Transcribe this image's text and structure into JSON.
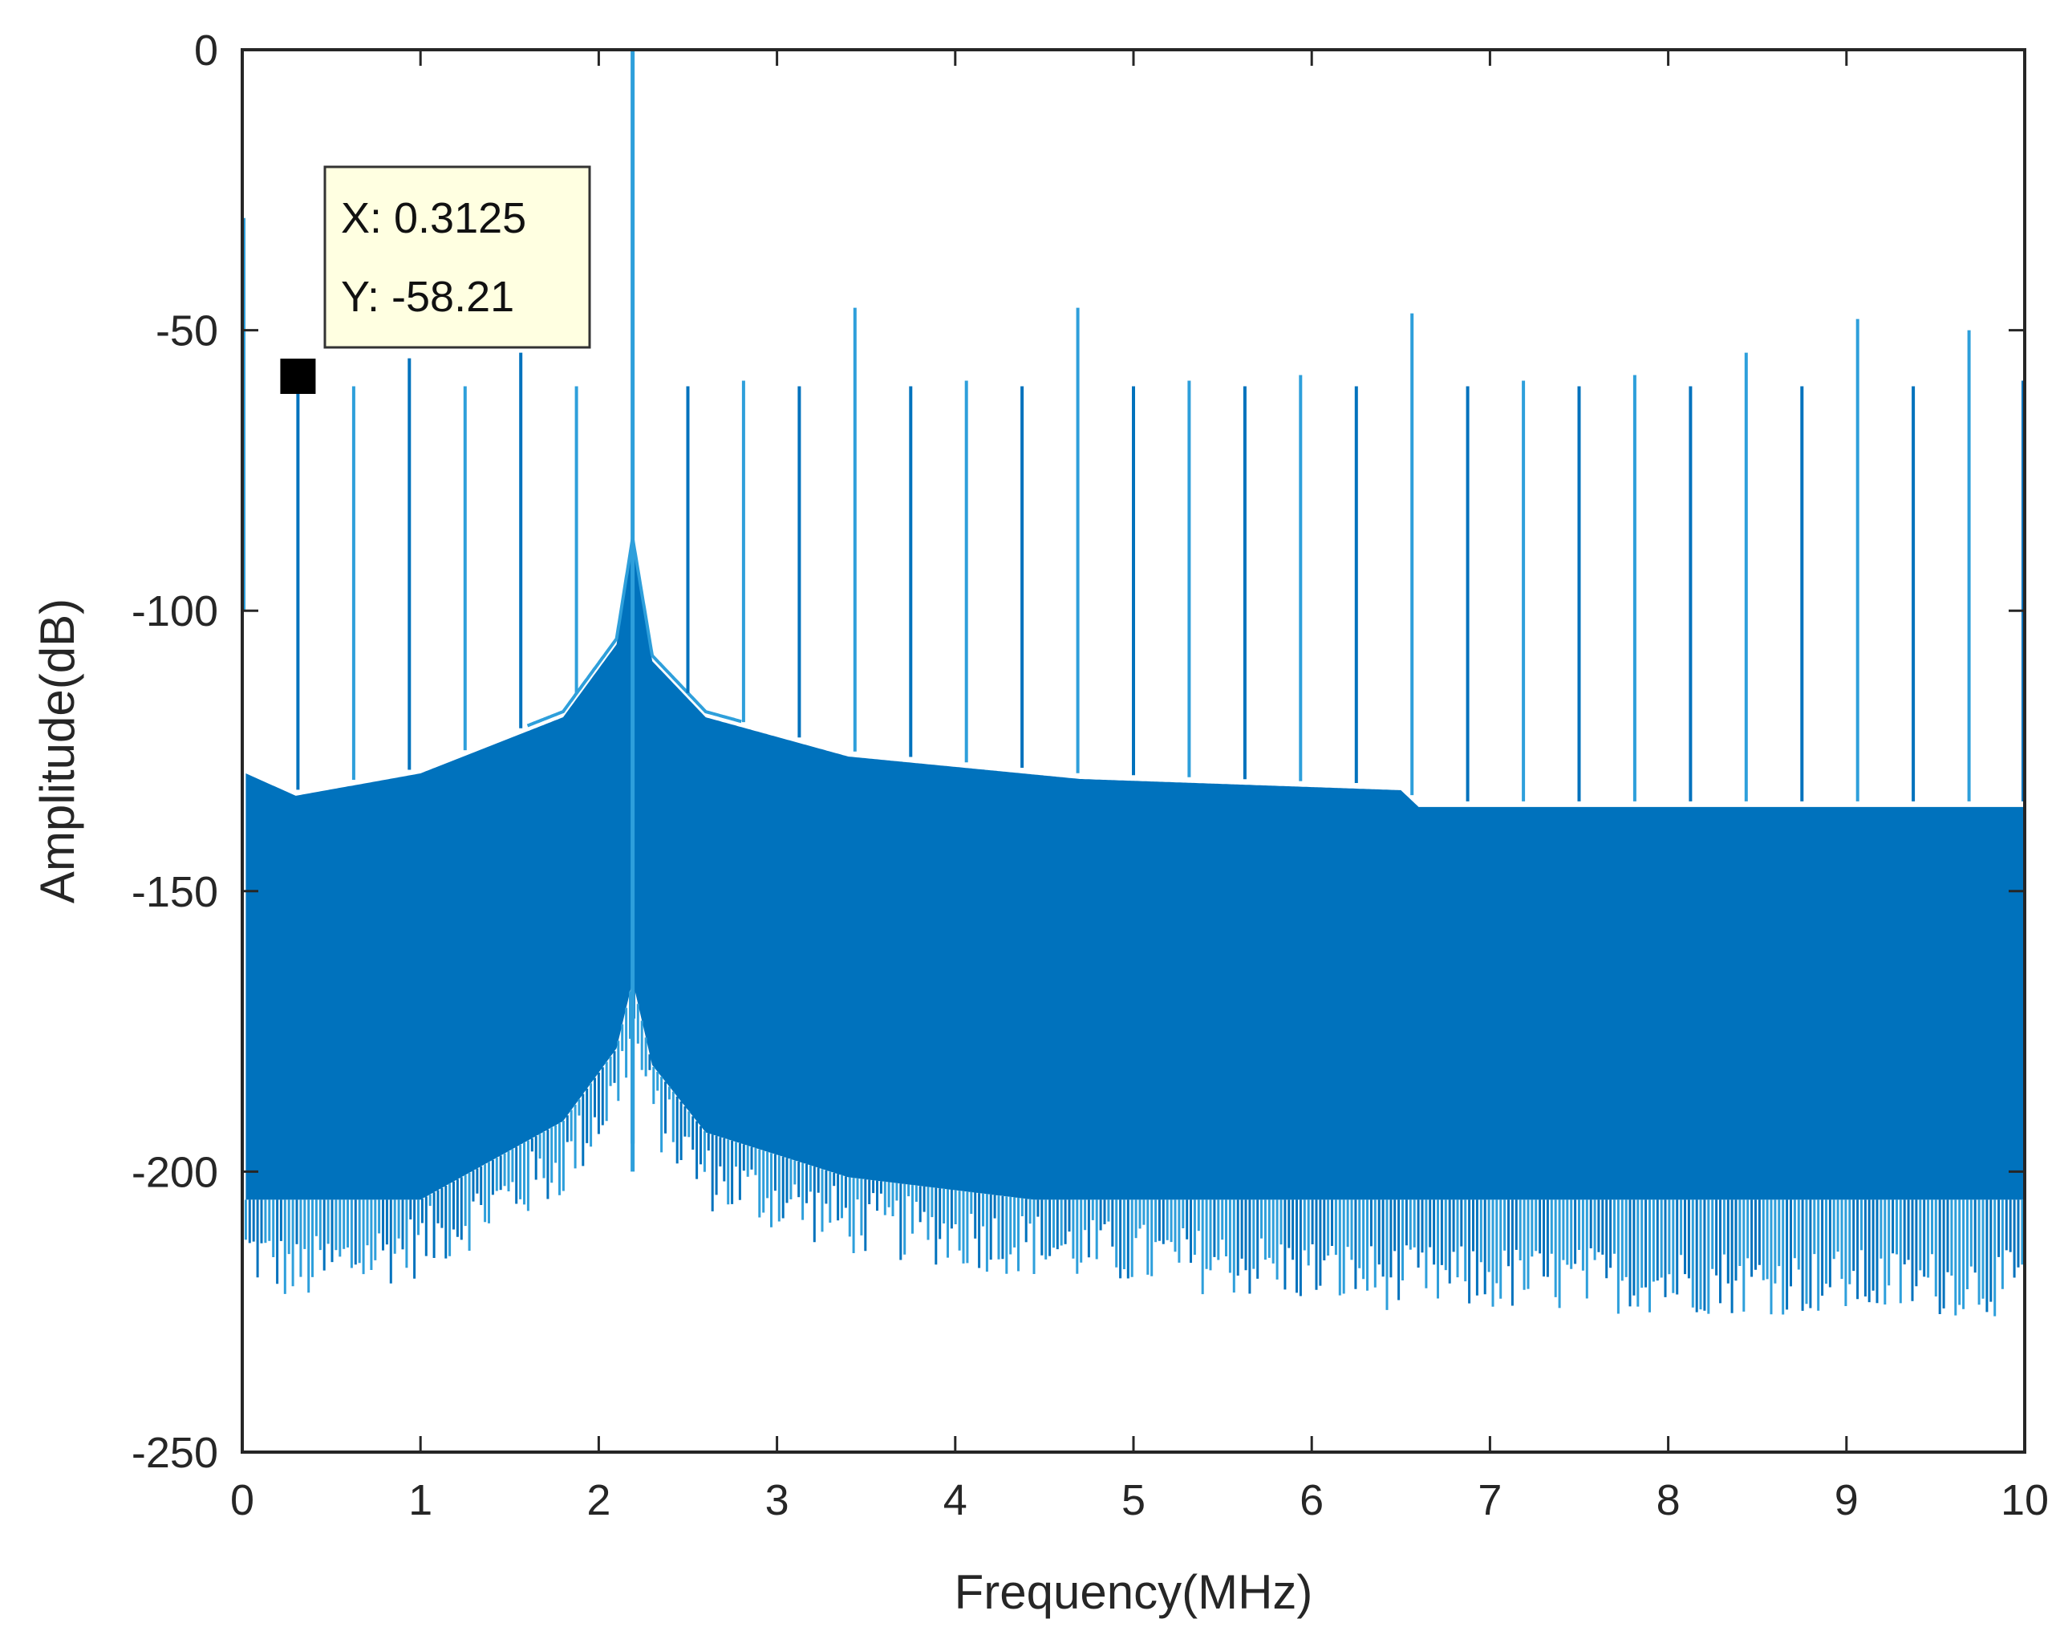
{
  "chart_data": {
    "type": "line",
    "title": "",
    "xlabel": "Frequency(MHz)",
    "ylabel": "Amplitude(dB)",
    "xlim": [
      0,
      10
    ],
    "ylim": [
      -250,
      0
    ],
    "xticks": [
      0,
      1,
      2,
      3,
      4,
      5,
      6,
      7,
      8,
      9,
      10
    ],
    "yticks": [
      0,
      -50,
      -100,
      -150,
      -200,
      -250
    ],
    "xtick_labels": [
      "0",
      "1",
      "2",
      "3",
      "4",
      "5",
      "6",
      "7",
      "8",
      "9",
      "10"
    ],
    "ytick_labels": [
      "0",
      "-50",
      "-100",
      "-150",
      "-200",
      "-250"
    ],
    "grid": false,
    "line_color": "#0072BD",
    "line_color_light": "#2E9FDB",
    "fundamental": {
      "x": 2.19,
      "y": 0
    },
    "secondary_peak": {
      "x": 2.19,
      "y": -170
    },
    "spurs": [
      {
        "x": 0.0,
        "y": -30
      },
      {
        "x": 0.3125,
        "y": -58.21
      },
      {
        "x": 0.625,
        "y": -60
      },
      {
        "x": 0.9375,
        "y": -55
      },
      {
        "x": 1.25,
        "y": -60
      },
      {
        "x": 1.5625,
        "y": -54
      },
      {
        "x": 1.875,
        "y": -60
      },
      {
        "x": 2.5,
        "y": -60
      },
      {
        "x": 2.8125,
        "y": -59
      },
      {
        "x": 3.125,
        "y": -60
      },
      {
        "x": 3.4375,
        "y": -46
      },
      {
        "x": 3.75,
        "y": -60
      },
      {
        "x": 4.0625,
        "y": -59
      },
      {
        "x": 4.375,
        "y": -60
      },
      {
        "x": 4.6875,
        "y": -46
      },
      {
        "x": 5.0,
        "y": -60
      },
      {
        "x": 5.3125,
        "y": -59
      },
      {
        "x": 5.625,
        "y": -60
      },
      {
        "x": 5.9375,
        "y": -58
      },
      {
        "x": 6.25,
        "y": -60
      },
      {
        "x": 6.5625,
        "y": -47
      },
      {
        "x": 6.875,
        "y": -60
      },
      {
        "x": 7.1875,
        "y": -59
      },
      {
        "x": 7.5,
        "y": -60
      },
      {
        "x": 7.8125,
        "y": -58
      },
      {
        "x": 8.125,
        "y": -60
      },
      {
        "x": 8.4375,
        "y": -54
      },
      {
        "x": 8.75,
        "y": -60
      },
      {
        "x": 9.0625,
        "y": -48
      },
      {
        "x": 9.375,
        "y": -60
      },
      {
        "x": 9.6875,
        "y": -50
      },
      {
        "x": 10.0,
        "y": -59
      }
    ],
    "noise_upper_envelope": [
      {
        "x": 0.0,
        "y": -100
      },
      {
        "x": 0.02,
        "y": -128
      },
      {
        "x": 0.3,
        "y": -132
      },
      {
        "x": 1.0,
        "y": -128
      },
      {
        "x": 1.8,
        "y": -118
      },
      {
        "x": 2.1,
        "y": -105
      },
      {
        "x": 2.19,
        "y": -87
      },
      {
        "x": 2.3,
        "y": -108
      },
      {
        "x": 2.6,
        "y": -118
      },
      {
        "x": 3.4,
        "y": -125
      },
      {
        "x": 4.7,
        "y": -129
      },
      {
        "x": 6.5,
        "y": -131
      },
      {
        "x": 6.6,
        "y": -134
      },
      {
        "x": 10.0,
        "y": -134
      }
    ],
    "noise_lower_envelope": [
      {
        "x": 0.02,
        "y": -220
      },
      {
        "x": 0.3,
        "y": -224
      },
      {
        "x": 1.0,
        "y": -219
      },
      {
        "x": 1.8,
        "y": -205
      },
      {
        "x": 2.1,
        "y": -192
      },
      {
        "x": 2.19,
        "y": -180
      },
      {
        "x": 2.3,
        "y": -195
      },
      {
        "x": 2.6,
        "y": -207
      },
      {
        "x": 3.4,
        "y": -215
      },
      {
        "x": 4.7,
        "y": -220
      },
      {
        "x": 6.5,
        "y": -225
      },
      {
        "x": 10.0,
        "y": -226
      }
    ],
    "data_tip": {
      "x_text": "X: 0.3125",
      "y_text": "Y: -58.21",
      "marker": {
        "x": 0.3125,
        "y": -58.21
      }
    }
  }
}
